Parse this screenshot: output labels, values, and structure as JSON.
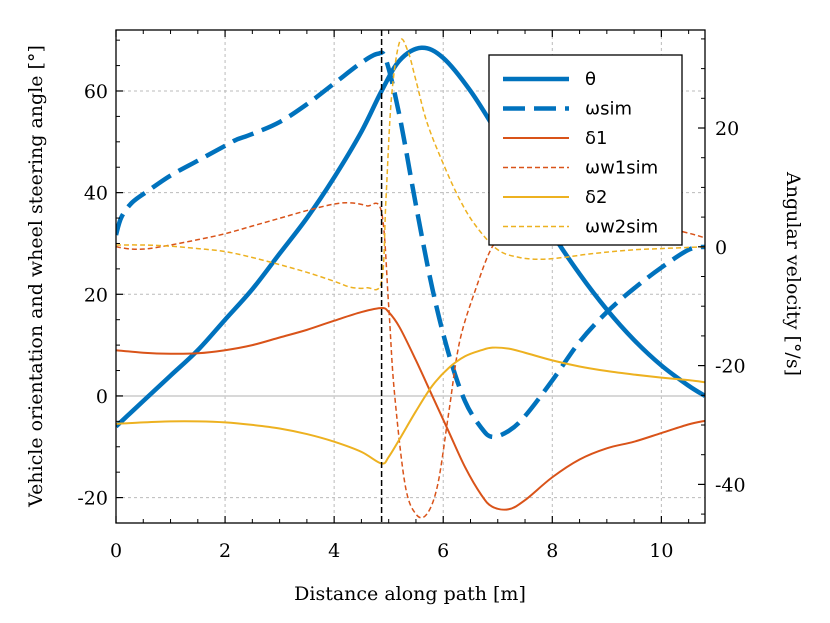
{
  "chart_data": {
    "type": "line",
    "xlabel": "Distance along path [m]",
    "ylabel": "Vehicle orientation and wheel steering angle [°]",
    "y2label": "Angular velocity [°/s]",
    "xlim": [
      0,
      10.8
    ],
    "ylim": [
      -25,
      72
    ],
    "y2lim": [
      -46.5,
      36.5
    ],
    "x_ticks": [
      0,
      2,
      4,
      6,
      8,
      10
    ],
    "y_ticks": [
      -20,
      0,
      20,
      40,
      60
    ],
    "y2_ticks": [
      -40,
      -20,
      0,
      20
    ],
    "grid": true,
    "legend_position": "top-right",
    "vline_x": 4.87,
    "colors": {
      "blue": "#0072BD",
      "red": "#D95319",
      "yellow": "#EDB120",
      "grid": "#bbbbbb",
      "zero": "#cccccc"
    },
    "series": [
      {
        "name": "θ",
        "axis": "left",
        "color": "#0072BD",
        "style": "solid",
        "width": 4.5,
        "x": [
          0,
          0.5,
          1,
          1.5,
          2,
          2.5,
          3,
          3.5,
          4,
          4.5,
          4.87,
          5.2,
          5.6,
          6.0,
          6.5,
          7.0,
          7.5,
          8.0,
          8.5,
          9.0,
          9.5,
          10.0,
          10.5,
          10.8
        ],
        "y": [
          -6,
          -1,
          4,
          9,
          15,
          21,
          28,
          35,
          43,
          52,
          60,
          66,
          68.5,
          66.5,
          60,
          51.5,
          42,
          32,
          24,
          17,
          11,
          6,
          2,
          0
        ]
      },
      {
        "name": "ωsim",
        "axis": "right",
        "color": "#0072BD",
        "style": "dash",
        "width": 4.5,
        "x": [
          0,
          0.1,
          0.3,
          0.6,
          1,
          1.5,
          2,
          2.2,
          2.5,
          3,
          3.5,
          4,
          4.5,
          4.8,
          4.95,
          5.2,
          5.5,
          5.8,
          6.1,
          6.4,
          6.7,
          6.9,
          7.2,
          7.5,
          8,
          8.5,
          9,
          9.5,
          10,
          10.5,
          10.8
        ],
        "y": [
          2,
          5,
          7.5,
          9.5,
          12,
          14.5,
          17,
          18,
          19,
          21,
          24,
          27.5,
          31,
          32.5,
          31.5,
          22,
          7,
          -7,
          -18,
          -26,
          -30.5,
          -32,
          -31,
          -28.5,
          -22.5,
          -16,
          -11,
          -7,
          -3.5,
          -0.5,
          0
        ]
      },
      {
        "name": "δ1",
        "axis": "left",
        "color": "#D95319",
        "style": "solid",
        "width": 2,
        "x": [
          0,
          0.5,
          1,
          1.5,
          2,
          2.5,
          3,
          3.5,
          4,
          4.5,
          4.87,
          5.0,
          5.2,
          5.5,
          5.8,
          6.1,
          6.4,
          6.7,
          6.9,
          7.2,
          7.5,
          8,
          8.5,
          9,
          9.5,
          10,
          10.5,
          10.8
        ],
        "y": [
          9,
          8.5,
          8.3,
          8.4,
          9,
          10,
          11.5,
          13,
          14.8,
          16.5,
          17.3,
          16.5,
          13.5,
          7,
          0,
          -7,
          -14,
          -19.5,
          -21.8,
          -22.3,
          -20.5,
          -16,
          -12.5,
          -10.3,
          -9,
          -7.3,
          -5.6,
          -4.9
        ]
      },
      {
        "name": "ωw1sim",
        "axis": "right",
        "color": "#D95319",
        "style": "dash",
        "width": 1.5,
        "x": [
          0,
          0.3,
          0.6,
          1,
          1.5,
          2,
          2.5,
          3,
          3.5,
          4,
          4.3,
          4.6,
          4.87,
          5.0,
          5.1,
          5.3,
          5.5,
          5.7,
          5.9,
          6.1,
          6.3,
          6.6,
          6.9,
          7.2,
          7.5,
          8,
          8.5,
          9,
          9.5,
          10,
          10.5,
          10.8
        ],
        "y": [
          0,
          -0.4,
          -0.3,
          0.3,
          1.2,
          2.2,
          3.5,
          4.8,
          6.1,
          7.2,
          7.4,
          6.9,
          5.8,
          -10,
          -24,
          -40,
          -45,
          -45,
          -40,
          -28,
          -16,
          -7,
          0,
          2.5,
          3.5,
          4.2,
          4.2,
          4.2,
          4,
          3.3,
          2.3,
          1.5
        ]
      },
      {
        "name": "δ2",
        "axis": "left",
        "color": "#EDB120",
        "style": "solid",
        "width": 2,
        "x": [
          0,
          0.5,
          1,
          1.5,
          2,
          2.5,
          3,
          3.5,
          4,
          4.5,
          4.87,
          5.0,
          5.2,
          5.5,
          5.8,
          6.1,
          6.4,
          6.7,
          6.9,
          7.2,
          7.5,
          8,
          8.5,
          9,
          9.5,
          10,
          10.5,
          10.8
        ],
        "y": [
          -5.5,
          -5.2,
          -5.0,
          -5.0,
          -5.2,
          -5.7,
          -6.4,
          -7.5,
          -9,
          -11,
          -13.3,
          -12,
          -8.5,
          -3,
          2,
          5.5,
          7.8,
          9,
          9.5,
          9.3,
          8.5,
          7,
          5.8,
          4.9,
          4.2,
          3.6,
          3.1,
          2.7
        ]
      },
      {
        "name": "ωw2sim",
        "axis": "right",
        "color": "#EDB120",
        "style": "dash",
        "width": 1.5,
        "x": [
          0,
          0.5,
          1,
          1.5,
          2,
          2.5,
          3,
          3.5,
          4,
          4.3,
          4.6,
          4.87,
          4.95,
          5.05,
          5.2,
          5.35,
          5.5,
          5.7,
          6.0,
          6.3,
          6.6,
          7.0,
          7.4,
          7.8,
          8.2,
          8.6,
          9,
          9.5,
          10,
          10.5,
          10.8
        ],
        "y": [
          0.3,
          0.3,
          0.1,
          -0.3,
          -0.8,
          -1.8,
          -3,
          -4.3,
          -5.8,
          -6.8,
          -6.9,
          -5.8,
          8,
          25,
          34.5,
          33,
          28,
          21,
          14,
          8,
          3.5,
          -0.5,
          -1.8,
          -2.1,
          -1.8,
          -1.3,
          -0.9,
          -0.5,
          -0.3,
          -0.1,
          0
        ]
      }
    ]
  }
}
